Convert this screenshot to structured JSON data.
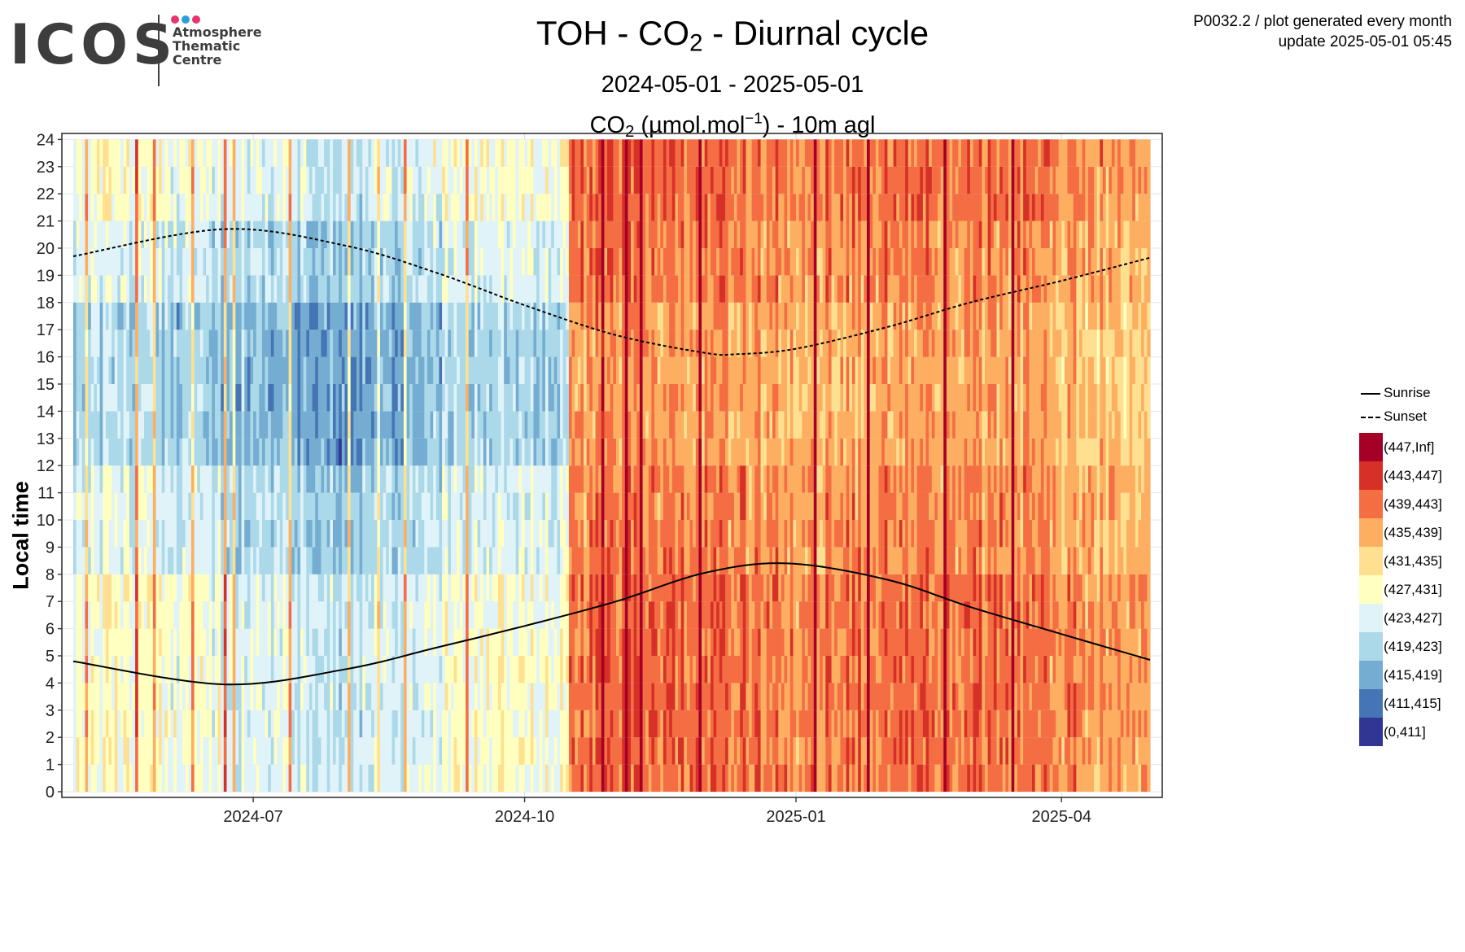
{
  "header": {
    "logo": {
      "word": "ICOS",
      "line1": "Atmosphere",
      "line2": "Thematic",
      "line3": "Centre",
      "dot_colors": [
        "#e8336e",
        "#2a9fd8",
        "#e8336e"
      ]
    },
    "title_main": "TOH - CO",
    "title_sub": "2",
    "title_end": " - Diurnal cycle",
    "period": "2024-05-01 - 2025-05-01",
    "subtitle_a": "CO",
    "subtitle_sub": "2",
    "subtitle_b": " (µmol.mol",
    "subtitle_sup": "−1",
    "subtitle_c": ") - 10m agl",
    "meta_line1": "P0032.2 / plot generated every month",
    "meta_line2": "update  2025-05-01 05:45"
  },
  "chart_data": {
    "type": "heatmap",
    "xlabel": "",
    "ylabel": "Local time",
    "x_range": [
      "2024-05-01",
      "2025-05-01"
    ],
    "y_range": [
      0,
      24
    ],
    "x_ticks": [
      "2024-07",
      "2024-10",
      "2025-01",
      "2025-04"
    ],
    "y_ticks": [
      0,
      1,
      2,
      3,
      4,
      5,
      6,
      7,
      8,
      9,
      10,
      11,
      12,
      13,
      14,
      15,
      16,
      17,
      18,
      19,
      20,
      21,
      22,
      23,
      24
    ],
    "grid": true,
    "legend_position": "right",
    "color_bins": [
      {
        "label": "(447,Inf]",
        "color": "#a50026"
      },
      {
        "label": "(443,447]",
        "color": "#d73027"
      },
      {
        "label": "(439,443]",
        "color": "#f46d43"
      },
      {
        "label": "(435,439]",
        "color": "#fdae61"
      },
      {
        "label": "(431,435]",
        "color": "#fee090"
      },
      {
        "label": "(427,431]",
        "color": "#ffffbf"
      },
      {
        "label": "(423,427]",
        "color": "#e0f3f8"
      },
      {
        "label": "(419,423]",
        "color": "#abd9e9"
      },
      {
        "label": "(415,419]",
        "color": "#74add1"
      },
      {
        "label": "(411,415]",
        "color": "#4575b4"
      },
      {
        "label": "(0,411]",
        "color": "#313695"
      }
    ],
    "series": [
      {
        "name": "Sunrise",
        "style": "solid",
        "x": [
          "2024-05-01",
          "2024-06-21",
          "2024-08-01",
          "2024-09-01",
          "2024-10-01",
          "2024-11-01",
          "2024-12-01",
          "2024-12-29",
          "2025-02-01",
          "2025-03-01",
          "2025-04-01",
          "2025-05-01"
        ],
        "y": [
          4.8,
          3.95,
          4.5,
          5.3,
          6.1,
          7.0,
          8.05,
          8.4,
          7.8,
          6.8,
          5.8,
          4.85
        ]
      },
      {
        "name": "Sunset",
        "style": "dashed",
        "x": [
          "2024-05-01",
          "2024-06-21",
          "2024-08-01",
          "2024-09-01",
          "2024-10-01",
          "2024-11-01",
          "2024-12-01",
          "2024-12-12",
          "2025-01-01",
          "2025-02-01",
          "2025-03-01",
          "2025-04-01",
          "2025-05-01"
        ],
        "y": [
          19.7,
          20.7,
          20.1,
          19.1,
          17.9,
          16.8,
          16.15,
          16.1,
          16.3,
          17.1,
          18.0,
          18.8,
          19.65
        ]
      }
    ]
  }
}
